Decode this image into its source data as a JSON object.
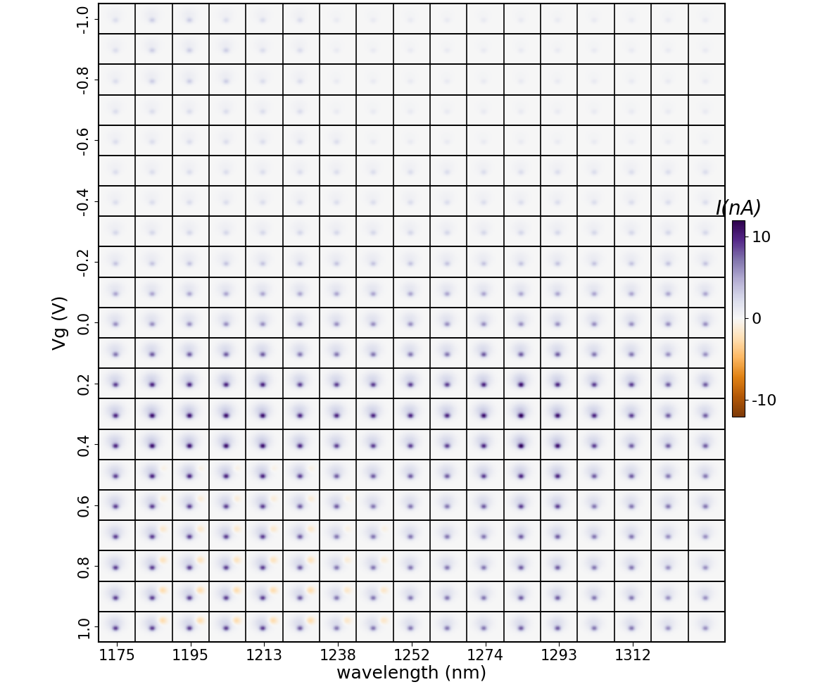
{
  "chart_data": {
    "type": "heatmap_grid",
    "x_label": "wavelength (nm)",
    "y_label": "Vg (V)",
    "categories": [
      1175,
      null,
      1195,
      null,
      1213,
      null,
      1238,
      null,
      1252,
      null,
      1274,
      null,
      1293,
      null,
      1312,
      null,
      null
    ],
    "y": [
      -1.0,
      -0.9,
      -0.8,
      -0.7,
      -0.6,
      -0.5,
      -0.4,
      -0.3,
      -0.2,
      -0.1,
      0.0,
      0.1,
      0.2,
      0.3,
      0.4,
      0.5,
      0.6,
      0.7,
      0.8,
      0.9,
      1.0
    ],
    "ylim": [
      1.05,
      -1.05
    ],
    "yticks": [
      -1.0,
      -0.8,
      -0.6,
      -0.4,
      -0.2,
      0.0,
      0.2,
      0.4,
      0.6,
      0.8,
      1.0
    ],
    "colorbar_label": "I(nA)",
    "colorbar_range": [
      -12,
      12
    ],
    "colorbar_ticks": [
      -10,
      0,
      10
    ],
    "cells": [
      [
        2,
        3,
        3,
        2,
        2,
        2,
        1,
        1,
        1,
        1,
        1,
        1,
        1,
        1,
        1,
        1,
        1
      ],
      [
        2,
        3,
        3,
        3,
        2,
        2,
        1,
        1,
        1,
        1,
        1,
        1,
        1,
        1,
        1,
        1,
        1
      ],
      [
        2,
        3,
        3,
        3,
        2,
        2,
        1,
        1,
        1,
        1,
        1,
        1,
        1,
        1,
        1,
        1,
        1
      ],
      [
        2,
        2,
        2,
        2,
        2,
        2,
        1,
        1,
        1,
        1,
        1,
        1,
        1,
        1,
        1,
        1,
        1
      ],
      [
        2,
        2,
        2,
        2,
        2,
        2,
        2,
        1,
        1,
        1,
        1,
        1,
        1,
        1,
        1,
        1,
        1
      ],
      [
        2,
        2,
        2,
        2,
        2,
        2,
        2,
        2,
        2,
        2,
        2,
        2,
        2,
        2,
        2,
        2,
        2
      ],
      [
        2,
        2,
        2,
        2,
        2,
        2,
        2,
        2,
        2,
        2,
        2,
        2,
        2,
        2,
        2,
        2,
        2
      ],
      [
        2.5,
        2.5,
        2.5,
        2.5,
        2.5,
        2.5,
        2.5,
        2.5,
        2.5,
        2.5,
        2.5,
        2.5,
        2.5,
        2.5,
        2.5,
        2.5,
        2.5
      ],
      [
        3.5,
        3.5,
        3.5,
        3.5,
        3.5,
        3.5,
        3.5,
        3.5,
        3.5,
        3.5,
        3.5,
        3.5,
        3.5,
        3.5,
        3.5,
        3.5,
        3.5
      ],
      [
        5,
        5,
        5,
        5,
        5,
        5,
        5,
        5,
        5,
        5,
        5,
        5,
        5,
        5,
        5,
        5,
        5
      ],
      [
        6,
        6,
        6,
        6,
        6,
        6,
        6,
        6,
        6,
        6,
        6,
        6,
        6,
        6,
        6,
        6,
        6
      ],
      [
        7,
        8,
        8,
        8,
        8,
        7,
        7,
        7,
        7,
        7,
        8,
        8,
        8,
        7,
        7,
        6,
        6
      ],
      [
        9,
        10,
        10,
        10,
        10,
        9,
        9,
        9,
        9,
        9,
        10,
        11,
        10,
        9,
        9,
        8,
        8
      ],
      [
        10,
        11,
        11,
        11,
        11,
        10,
        10,
        10,
        10,
        10,
        11,
        12,
        11,
        10,
        9,
        8,
        8
      ],
      [
        10,
        11,
        11,
        11,
        11,
        10,
        9,
        9,
        9,
        9,
        10,
        12,
        11,
        9,
        8,
        8,
        8
      ],
      [
        9,
        10,
        10,
        10,
        10,
        9,
        8,
        8,
        8,
        8,
        9,
        10,
        10,
        8,
        8,
        7,
        7
      ],
      [
        9,
        9,
        9,
        9,
        9,
        8,
        8,
        7,
        7,
        7,
        8,
        9,
        9,
        7,
        7,
        7,
        7
      ],
      [
        9,
        9,
        9,
        9,
        9,
        8,
        7,
        7,
        7,
        7,
        7,
        8,
        8,
        7,
        7,
        6,
        6
      ],
      [
        9,
        9,
        9,
        9,
        9,
        8,
        7,
        7,
        7,
        7,
        7,
        8,
        8,
        7,
        7,
        6,
        6
      ],
      [
        9,
        9,
        9,
        9,
        9,
        8,
        7,
        7,
        7,
        7,
        7,
        8,
        8,
        7,
        7,
        6,
        6
      ],
      [
        9,
        9,
        9,
        9,
        9,
        8,
        7,
        7,
        7,
        7,
        7,
        8,
        8,
        7,
        7,
        6,
        6
      ]
    ],
    "cells_negative": [
      [
        0,
        0,
        0,
        0,
        0,
        0,
        0,
        0,
        0,
        0,
        0,
        0,
        0,
        0,
        0,
        0,
        0
      ],
      [
        0,
        0,
        0,
        0,
        0,
        0,
        0,
        0,
        0,
        0,
        0,
        0,
        0,
        0,
        0,
        0,
        0
      ],
      [
        0,
        0,
        0,
        0,
        0,
        0,
        0,
        0,
        0,
        0,
        0,
        0,
        0,
        0,
        0,
        0,
        0
      ],
      [
        0,
        0,
        0,
        0,
        0,
        0,
        0,
        0,
        0,
        0,
        0,
        0,
        0,
        0,
        0,
        0,
        0
      ],
      [
        0,
        0,
        0,
        0,
        0,
        0,
        0,
        0,
        0,
        0,
        0,
        0,
        0,
        0,
        0,
        0,
        0
      ],
      [
        0,
        0,
        0,
        0,
        0,
        0,
        0,
        0,
        0,
        0,
        0,
        0,
        0,
        0,
        0,
        0,
        0
      ],
      [
        0,
        0,
        0,
        0,
        0,
        0,
        0,
        0,
        0,
        0,
        0,
        0,
        0,
        0,
        0,
        0,
        0
      ],
      [
        0,
        0,
        0,
        0,
        0,
        0,
        0,
        0,
        0,
        0,
        0,
        0,
        0,
        0,
        0,
        0,
        0
      ],
      [
        0,
        0,
        0,
        0,
        0,
        0,
        0,
        0,
        0,
        0,
        0,
        0,
        0,
        0,
        0,
        0,
        0
      ],
      [
        0,
        0,
        0,
        0,
        0,
        0,
        0,
        0,
        0,
        0,
        0,
        0,
        0,
        0,
        0,
        0,
        0
      ],
      [
        0,
        0,
        0,
        0,
        0,
        0,
        0,
        0,
        0,
        0,
        0,
        0,
        0,
        0,
        0,
        0,
        0
      ],
      [
        0,
        0,
        0,
        0,
        0,
        0,
        0,
        0,
        0,
        0,
        0,
        0,
        0,
        0,
        0,
        0,
        0
      ],
      [
        0,
        0,
        0,
        0,
        0,
        0,
        0,
        0,
        0,
        0,
        0,
        0,
        0,
        0,
        0,
        0,
        0
      ],
      [
        0,
        0,
        0,
        0,
        0,
        0,
        0,
        0,
        0,
        0,
        0,
        0,
        0,
        0,
        0,
        0,
        0
      ],
      [
        0,
        0,
        0,
        0,
        0,
        0,
        0,
        0,
        0,
        0,
        0,
        0,
        0,
        0,
        0,
        0,
        0
      ],
      [
        0,
        -1,
        -1,
        -1,
        -1,
        -1,
        0,
        0,
        0,
        0,
        0,
        0,
        0,
        0,
        0,
        0,
        0
      ],
      [
        0,
        -1.5,
        -1.5,
        -1.5,
        -1.5,
        -1.5,
        -1,
        0,
        0,
        0,
        0,
        0,
        0,
        0,
        0,
        0,
        0
      ],
      [
        0,
        -2,
        -2,
        -2,
        -2,
        -2,
        -1,
        -1,
        0,
        0,
        0,
        0,
        0,
        0,
        0,
        0,
        0
      ],
      [
        0,
        -2.5,
        -2.5,
        -2.5,
        -2.5,
        -2.5,
        -1.5,
        -1.5,
        0,
        0,
        0,
        0,
        0,
        0,
        0,
        0,
        0
      ],
      [
        0,
        -3,
        -3,
        -3,
        -3,
        -3,
        -2,
        -2,
        0,
        0,
        0,
        0,
        0,
        0,
        0,
        0,
        0
      ],
      [
        0,
        -3,
        -3,
        -3,
        -3,
        -3,
        -2,
        -2,
        0,
        0,
        0,
        0,
        0,
        0,
        0,
        0,
        0
      ]
    ]
  }
}
